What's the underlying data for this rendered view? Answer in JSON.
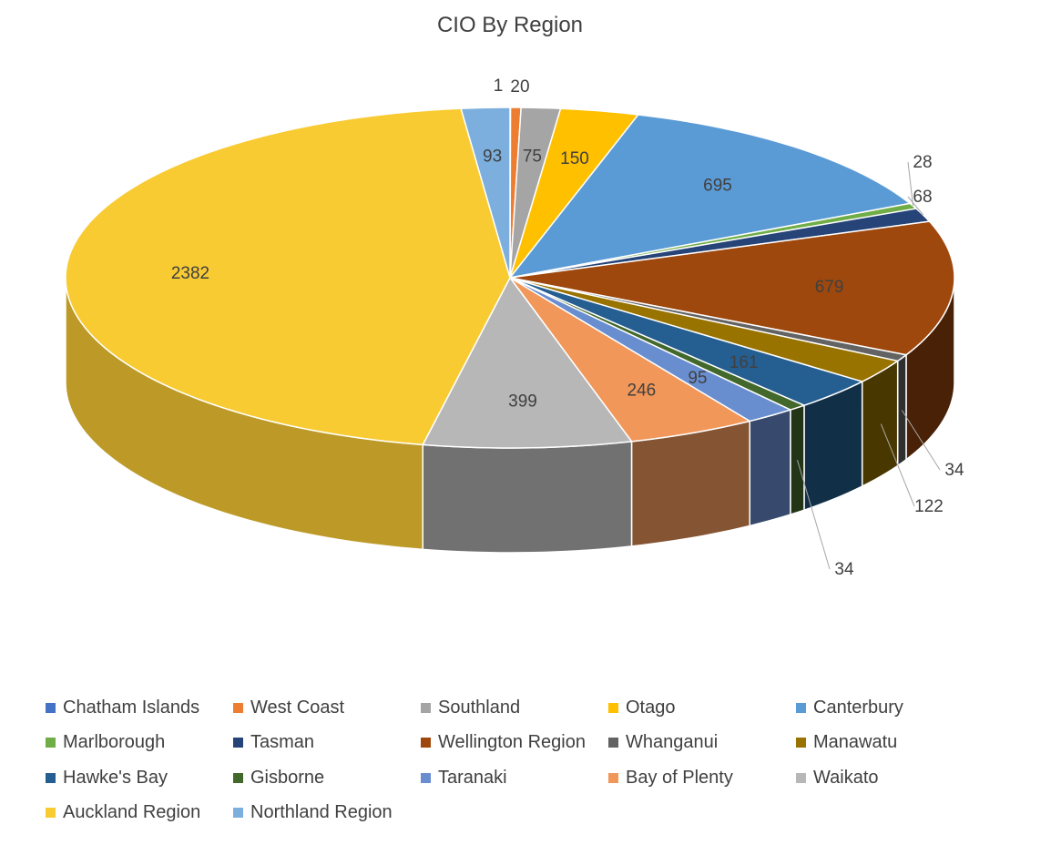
{
  "chart_data": {
    "type": "pie",
    "title": "CIO By Region",
    "legend_position": "bottom",
    "slices": [
      {
        "name": "Chatham Islands",
        "value": 1,
        "color": "#4472C4"
      },
      {
        "name": "West Coast",
        "value": 20,
        "color": "#ED7D31"
      },
      {
        "name": "Southland",
        "value": 75,
        "color": "#A5A5A5"
      },
      {
        "name": "Otago",
        "value": 150,
        "color": "#FFC000"
      },
      {
        "name": "Canterbury",
        "value": 695,
        "color": "#5B9BD5"
      },
      {
        "name": "Marlborough",
        "value": 28,
        "color": "#70AD47"
      },
      {
        "name": "Tasman",
        "value": 68,
        "color": "#264478"
      },
      {
        "name": "Wellington Region",
        "value": 679,
        "color": "#9E480E"
      },
      {
        "name": "Whanganui",
        "value": 34,
        "color": "#636363"
      },
      {
        "name": "Manawatu",
        "value": 122,
        "color": "#997300"
      },
      {
        "name": "Hawke's Bay",
        "value": 161,
        "color": "#255E91"
      },
      {
        "name": "Gisborne",
        "value": 34,
        "color": "#43682B"
      },
      {
        "name": "Taranaki",
        "value": 95,
        "color": "#698ED0"
      },
      {
        "name": "Bay of Plenty",
        "value": 246,
        "color": "#F1975A"
      },
      {
        "name": "Waikato",
        "value": 399,
        "color": "#B7B7B7"
      },
      {
        "name": "Auckland Region",
        "value": 2382,
        "color": "#F8CB33"
      },
      {
        "name": "Northland Region",
        "value": 93,
        "color": "#7CAFDD"
      }
    ]
  }
}
